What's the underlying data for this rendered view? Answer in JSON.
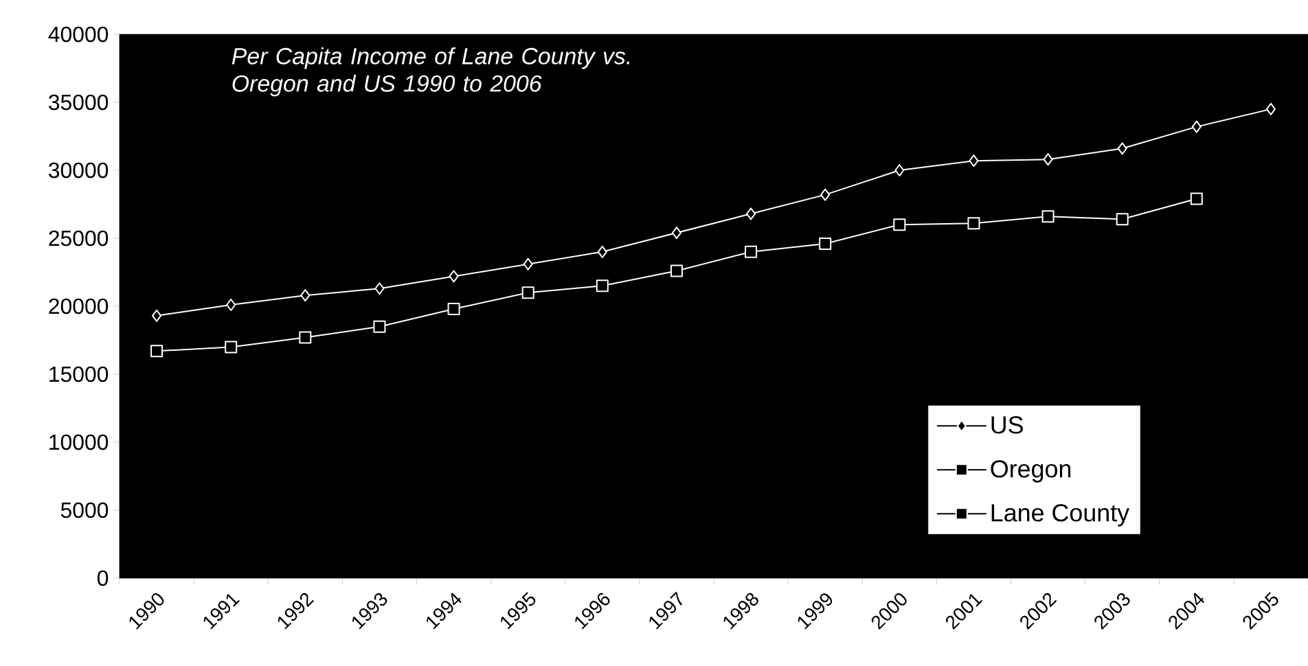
{
  "chart_data": {
    "type": "line",
    "title": "Per Capita Income of Lane County vs. Oregon and US 1990 to 2006",
    "categories": [
      "1990",
      "1991",
      "1992",
      "1993",
      "1994",
      "1995",
      "1996",
      "1997",
      "1998",
      "1999",
      "2000",
      "2001",
      "2002",
      "2003",
      "2004",
      "2005"
    ],
    "series": [
      {
        "name": "US",
        "color": "#ffffff",
        "marker": "diamond",
        "values": [
          19300,
          20100,
          20800,
          21300,
          22200,
          23100,
          24000,
          25400,
          26800,
          28200,
          30000,
          30700,
          30800,
          31600,
          33200,
          34500
        ]
      },
      {
        "name": "Oregon",
        "color": "#ffffff",
        "marker": "square",
        "values": [
          null,
          null,
          null,
          null,
          null,
          null,
          null,
          null,
          null,
          null,
          null,
          null,
          null,
          null,
          null,
          null
        ]
      },
      {
        "name": "Lane County",
        "color": "#ffffff",
        "marker": "square",
        "values": [
          16700,
          17000,
          17700,
          18500,
          19800,
          21000,
          21500,
          22600,
          24000,
          24600,
          26000,
          26100,
          26600,
          26400,
          27900,
          null
        ]
      }
    ],
    "ylim": [
      0,
      40000
    ],
    "yticks": [
      0,
      5000,
      10000,
      15000,
      20000,
      25000,
      30000,
      35000,
      40000
    ],
    "grid": false,
    "legend": "bottom right"
  }
}
